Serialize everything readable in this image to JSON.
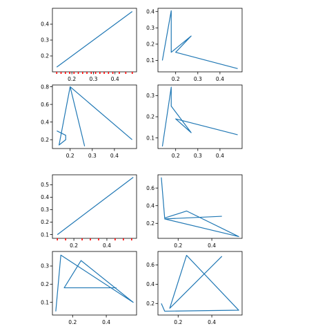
{
  "chart_data": [
    {
      "type": "line",
      "x": [
        0.13,
        0.48
      ],
      "y": [
        0.13,
        0.48
      ],
      "xlim": [
        0.11,
        0.5
      ],
      "ylim": [
        0.1,
        0.5
      ],
      "xticks": [
        0.2,
        0.3,
        0.4
      ],
      "xtick_labels": [
        "0.2",
        "0.3",
        "0.4"
      ],
      "yticks": [
        0.2,
        0.3,
        0.4
      ],
      "ytick_labels": [
        "0.2",
        "0.3",
        "0.4"
      ],
      "minor_xticks": [
        0.13,
        0.15,
        0.17,
        0.19,
        0.21,
        0.23,
        0.25,
        0.27,
        0.29,
        0.31,
        0.33,
        0.35,
        0.37,
        0.39,
        0.42,
        0.45,
        0.48
      ],
      "grid": false,
      "color": "#1f77b4",
      "minor_tick_color": "#ff0000"
    },
    {
      "type": "line",
      "x": [
        0.14,
        0.18,
        0.18,
        0.27,
        0.2,
        0.48
      ],
      "y": [
        0.1,
        0.405,
        0.15,
        0.25,
        0.15,
        0.05
      ],
      "xlim": [
        0.12,
        0.5
      ],
      "ylim": [
        0.03,
        0.42
      ],
      "xticks": [
        0.2,
        0.3,
        0.4
      ],
      "xtick_labels": [
        "0.2",
        "0.3",
        "0.4"
      ],
      "yticks": [
        0.1,
        0.2,
        0.3,
        0.4
      ],
      "ytick_labels": [
        "0.1",
        "0.2",
        "0.3",
        "0.4"
      ],
      "grid": false,
      "color": "#1f77b4"
    },
    {
      "type": "line",
      "x": [
        0.14,
        0.18,
        0.18,
        0.15,
        0.2,
        0.265,
        0.2,
        0.48
      ],
      "y": [
        0.3,
        0.25,
        0.2,
        0.14,
        0.8,
        0.13,
        0.8,
        0.2
      ],
      "xlim": [
        0.12,
        0.5
      ],
      "ylim": [
        0.1,
        0.82
      ],
      "xticks": [
        0.2,
        0.3,
        0.4
      ],
      "xtick_labels": [
        "0.2",
        "0.3",
        "0.4"
      ],
      "yticks": [
        0.2,
        0.4,
        0.6,
        0.8
      ],
      "ytick_labels": [
        "0.2",
        "0.4",
        "0.6",
        "0.8"
      ],
      "grid": false,
      "color": "#1f77b4"
    },
    {
      "type": "line",
      "x": [
        0.14,
        0.18,
        0.18,
        0.27,
        0.2,
        0.48
      ],
      "y": [
        0.06,
        0.34,
        0.25,
        0.125,
        0.19,
        0.115
      ],
      "xlim": [
        0.12,
        0.5
      ],
      "ylim": [
        0.05,
        0.35
      ],
      "xticks": [
        0.2,
        0.3,
        0.4
      ],
      "xtick_labels": [
        "0.2",
        "0.3",
        "0.4"
      ],
      "yticks": [
        0.1,
        0.2,
        0.3
      ],
      "ytick_labels": [
        "0.1",
        "0.2",
        "0.3"
      ],
      "grid": false,
      "color": "#1f77b4"
    },
    {
      "type": "line",
      "x": [
        0.1,
        0.56
      ],
      "y": [
        0.1,
        0.56
      ],
      "xlim": [
        0.07,
        0.58
      ],
      "ylim": [
        0.07,
        0.58
      ],
      "xticks": [
        0.2,
        0.4
      ],
      "xtick_labels": [
        "0.2",
        "0.4"
      ],
      "yticks": [
        0.1,
        0.2,
        0.3,
        0.4,
        0.5
      ],
      "ytick_labels": [
        "0.1",
        "0.2",
        "0.3",
        "0.4",
        "0.5"
      ],
      "minor_xticks": [
        0.1,
        0.15,
        0.25,
        0.3,
        0.35,
        0.45,
        0.5,
        0.55
      ],
      "grid": false,
      "color": "#1f77b4"
    },
    {
      "type": "line",
      "x": [
        0.1,
        0.12,
        0.25,
        0.56,
        0.12,
        0.46
      ],
      "y": [
        0.72,
        0.26,
        0.34,
        0.05,
        0.25,
        0.28
      ],
      "xlim": [
        0.08,
        0.58
      ],
      "ylim": [
        0.03,
        0.75
      ],
      "xticks": [
        0.2,
        0.4
      ],
      "xtick_labels": [
        "0.2",
        "0.4"
      ],
      "yticks": [
        0.2,
        0.4,
        0.6
      ],
      "ytick_labels": [
        "0.2",
        "0.4",
        "0.6"
      ],
      "grid": false,
      "color": "#1f77b4"
    },
    {
      "type": "line",
      "x": [
        0.1,
        0.13,
        0.56,
        0.25,
        0.15,
        0.46
      ],
      "y": [
        0.05,
        0.36,
        0.1,
        0.33,
        0.18,
        0.18
      ],
      "xlim": [
        0.08,
        0.58
      ],
      "ylim": [
        0.03,
        0.38
      ],
      "xticks": [
        0.2,
        0.4
      ],
      "xtick_labels": [
        "0.2",
        "0.4"
      ],
      "yticks": [
        0.1,
        0.2,
        0.3
      ],
      "ytick_labels": [
        "0.1",
        "0.2",
        "0.3"
      ],
      "grid": false,
      "color": "#1f77b4"
    },
    {
      "type": "line",
      "x": [
        0.1,
        0.12,
        0.56,
        0.25,
        0.15,
        0.46
      ],
      "y": [
        0.2,
        0.12,
        0.13,
        0.7,
        0.15,
        0.69
      ],
      "xlim": [
        0.08,
        0.58
      ],
      "ylim": [
        0.08,
        0.74
      ],
      "xticks": [
        0.2,
        0.4
      ],
      "xtick_labels": [
        "0.2",
        "0.4"
      ],
      "yticks": [
        0.2,
        0.4,
        0.6
      ],
      "ytick_labels": [
        "0.2",
        "0.4",
        "0.6"
      ],
      "grid": false,
      "color": "#1f77b4"
    }
  ]
}
